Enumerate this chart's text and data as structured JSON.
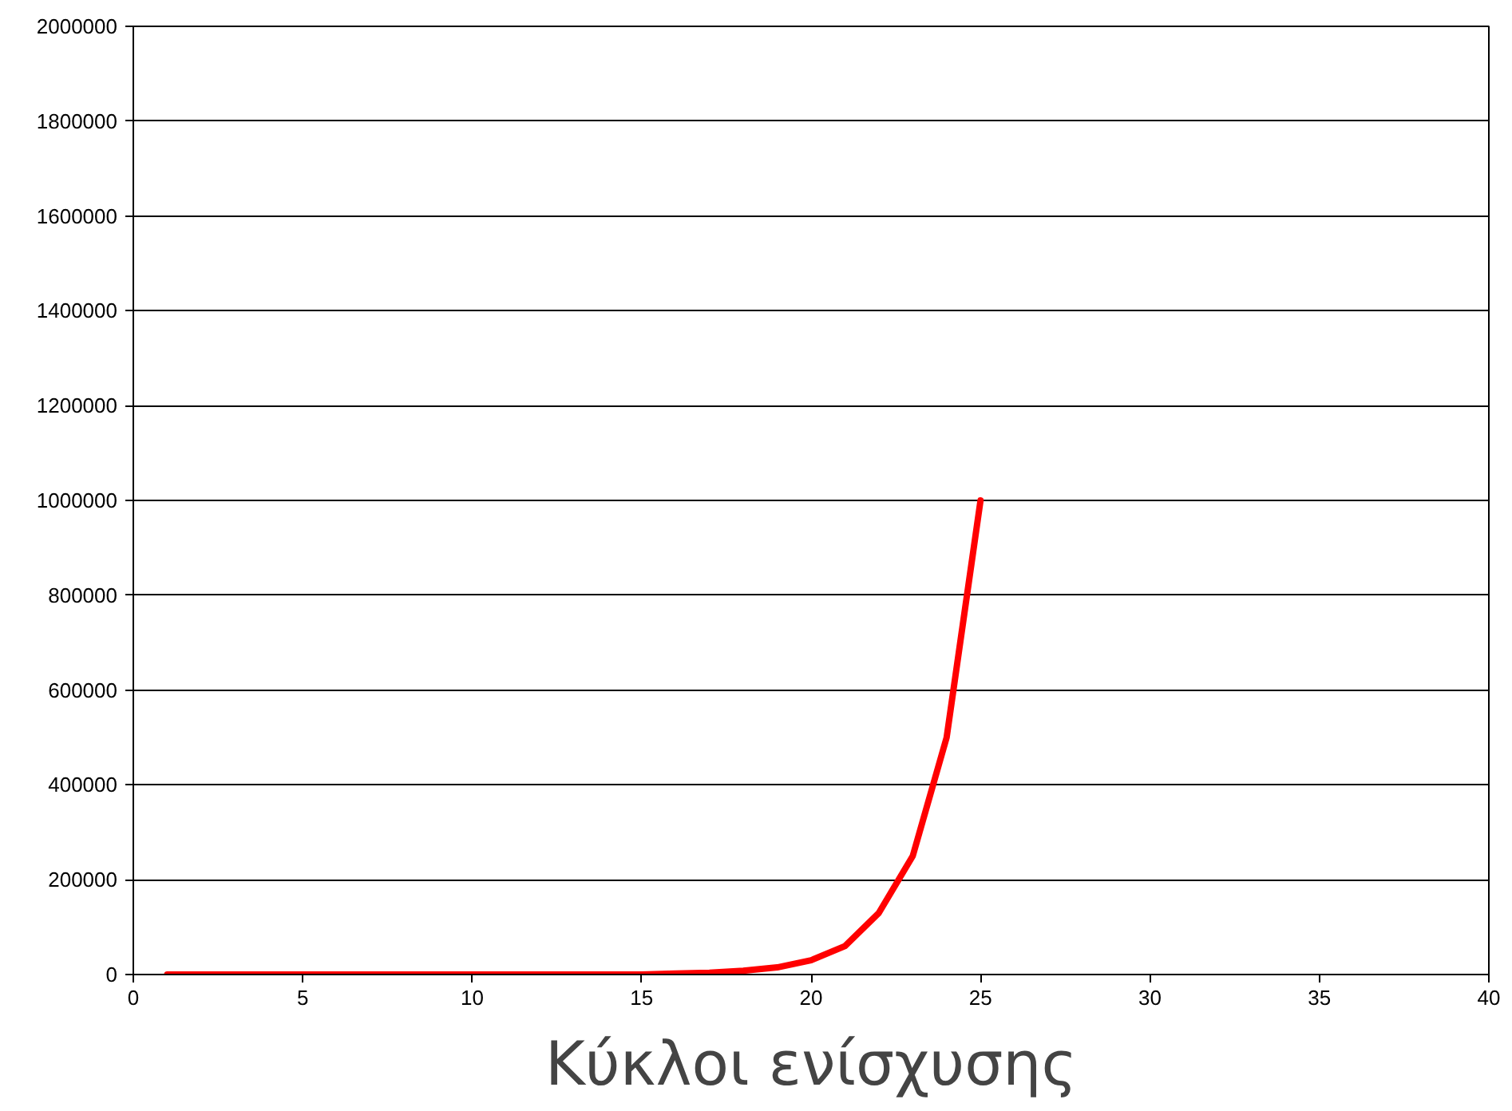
{
  "chart_data": {
    "type": "line",
    "xlabel": "Κύκλοι ενίσχυσης",
    "x": [
      1,
      2,
      3,
      4,
      5,
      6,
      7,
      8,
      9,
      10,
      11,
      12,
      13,
      14,
      15,
      16,
      17,
      18,
      19,
      20,
      21,
      22,
      23,
      24,
      25
    ],
    "series": [
      {
        "color": "#ff0000",
        "values": [
          0,
          0,
          0,
          0,
          0,
          0,
          0,
          0,
          0,
          0,
          0,
          0,
          0,
          0,
          0,
          2000,
          4000,
          8000,
          15000,
          30000,
          60000,
          130000,
          250000,
          500000,
          1000000
        ]
      }
    ],
    "xlim": [
      0,
      40
    ],
    "xticks": [
      0,
      5,
      10,
      15,
      20,
      25,
      30,
      35,
      40
    ],
    "ylim": [
      0,
      2000000
    ],
    "yticks": [
      0,
      200000,
      400000,
      600000,
      800000,
      1000000,
      1200000,
      1400000,
      1600000,
      1800000,
      2000000
    ],
    "grid": "y",
    "line_style": "solid"
  }
}
